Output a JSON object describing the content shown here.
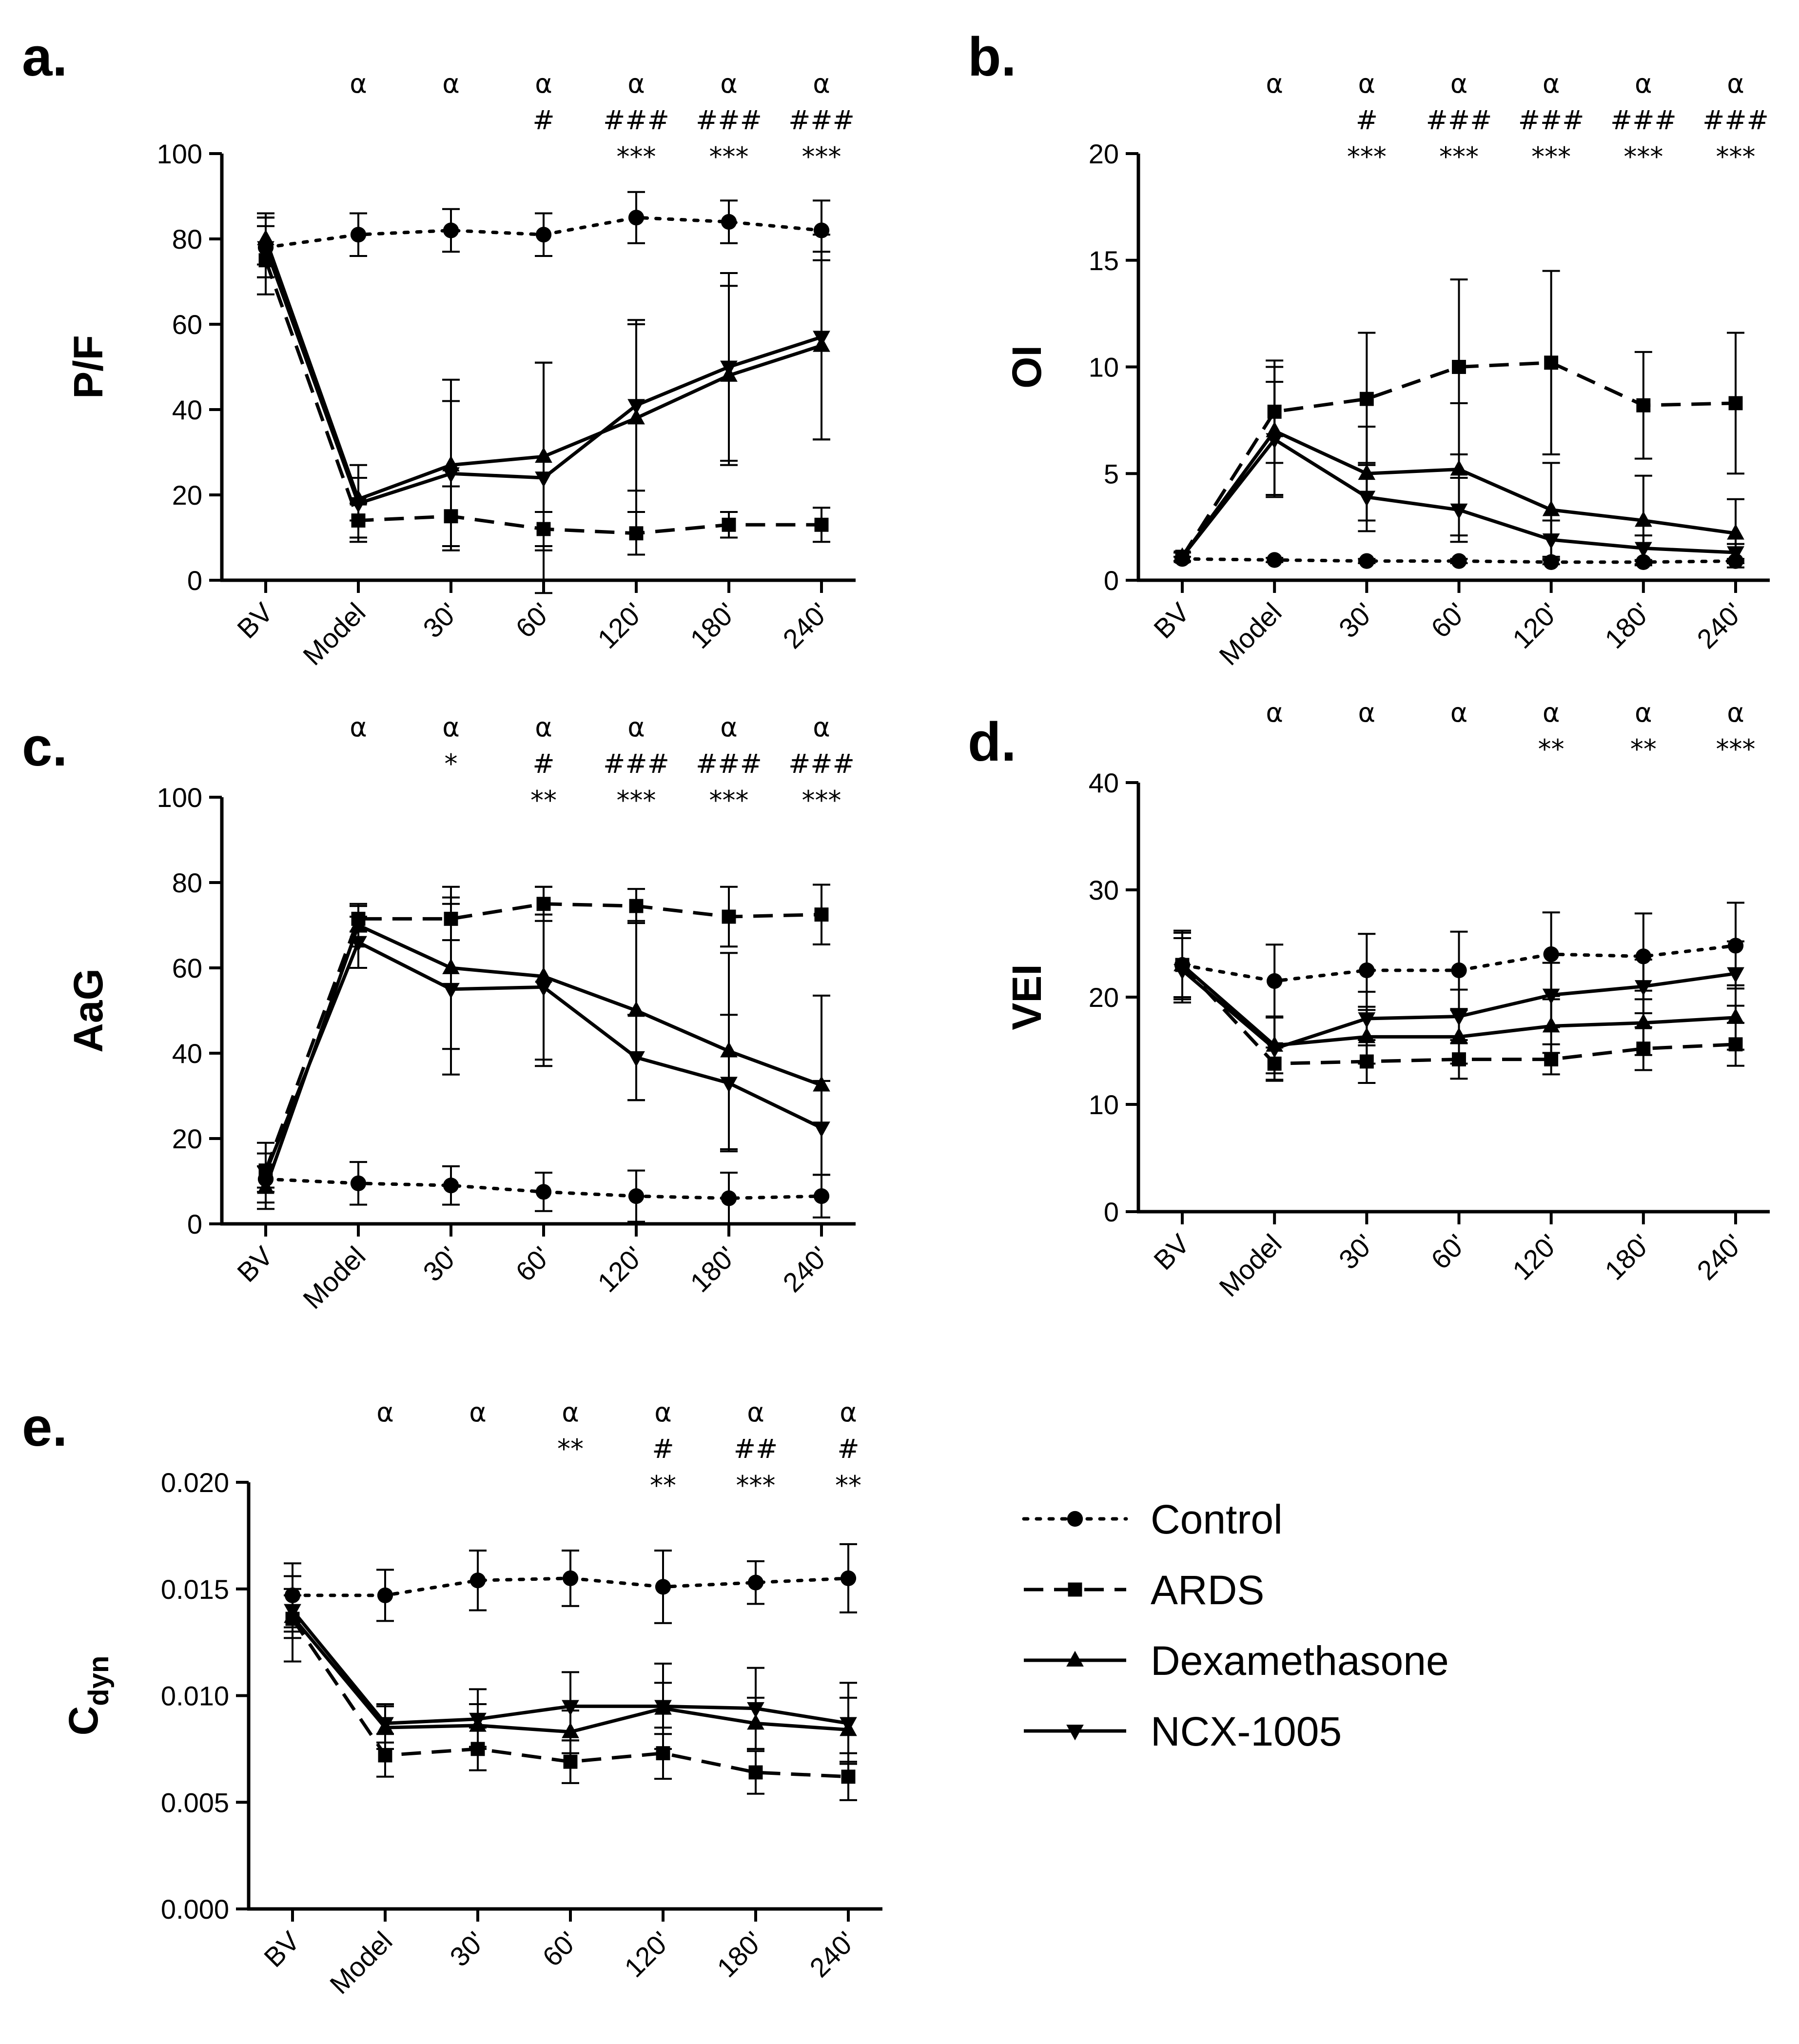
{
  "legend": [
    {
      "key": "control",
      "label": "Control"
    },
    {
      "key": "ards",
      "label": "ARDS"
    },
    {
      "key": "dexa",
      "label": "Dexamethasone"
    },
    {
      "key": "ncx",
      "label": "NCX-1005"
    }
  ],
  "chart_data": [
    {
      "letter": "a.",
      "type": "line",
      "ylabel": "P/F",
      "categories": [
        "BV",
        "Model",
        "30'",
        "60'",
        "120'",
        "180'",
        "240'"
      ],
      "ylim": [
        0,
        100
      ],
      "yticks": [
        "0",
        "20",
        "40",
        "60",
        "80",
        "100"
      ],
      "significance": [
        [],
        [
          "α"
        ],
        [
          "α"
        ],
        [
          "α",
          "#"
        ],
        [
          "α",
          "###",
          "***"
        ],
        [
          "α",
          "###",
          "***"
        ],
        [
          "α",
          "###",
          "***"
        ]
      ],
      "series": [
        {
          "key": "control",
          "values": [
            78,
            81,
            82,
            81,
            85,
            84,
            82
          ],
          "errors": [
            7,
            5,
            5,
            5,
            6,
            5,
            7
          ]
        },
        {
          "key": "ards",
          "values": [
            75,
            14,
            15,
            12,
            11,
            13,
            13
          ],
          "errors": [
            8,
            4,
            7,
            4,
            5,
            3,
            4
          ]
        },
        {
          "key": "dexa",
          "values": [
            80,
            19,
            27,
            29,
            38,
            48,
            55
          ],
          "errors": [
            6,
            5,
            20,
            22,
            22,
            21,
            22
          ]
        },
        {
          "key": "ncx",
          "values": [
            78,
            18,
            25,
            24,
            41,
            50,
            57
          ],
          "errors": [
            7,
            9,
            17,
            27,
            20,
            22,
            24
          ]
        }
      ]
    },
    {
      "letter": "b.",
      "type": "line",
      "ylabel": "OI",
      "categories": [
        "BV",
        "Model",
        "30'",
        "60'",
        "120'",
        "180'",
        "240'"
      ],
      "ylim": [
        0,
        20
      ],
      "yticks": [
        "0",
        "5",
        "10",
        "15",
        "20"
      ],
      "significance": [
        [],
        [
          "α"
        ],
        [
          "α",
          "#",
          "***"
        ],
        [
          "α",
          "###",
          "***"
        ],
        [
          "α",
          "###",
          "***"
        ],
        [
          "α",
          "###",
          "***"
        ],
        [
          "α",
          "###",
          "***"
        ]
      ],
      "series": [
        {
          "key": "control",
          "values": [
            1.0,
            0.95,
            0.9,
            0.9,
            0.85,
            0.85,
            0.9
          ],
          "errors": [
            0.1,
            0.1,
            0.1,
            0.1,
            0.1,
            0.1,
            0.1
          ]
        },
        {
          "key": "ards",
          "values": [
            1.1,
            7.9,
            8.5,
            10.0,
            10.2,
            8.2,
            8.3
          ],
          "errors": [
            0.2,
            2.4,
            3.1,
            4.1,
            4.3,
            2.5,
            3.3
          ]
        },
        {
          "key": "dexa",
          "values": [
            1.1,
            7.0,
            5.0,
            5.2,
            3.3,
            2.8,
            2.2
          ],
          "errors": [
            0.2,
            3.0,
            2.2,
            3.1,
            2.2,
            2.1,
            1.6
          ]
        },
        {
          "key": "ncx",
          "values": [
            1.1,
            6.6,
            3.9,
            3.3,
            1.9,
            1.5,
            1.3
          ],
          "errors": [
            0.2,
            2.7,
            1.6,
            1.5,
            0.9,
            0.6,
            0.4
          ]
        }
      ]
    },
    {
      "letter": "c.",
      "type": "line",
      "ylabel": "AaG",
      "categories": [
        "BV",
        "Model",
        "30'",
        "60'",
        "120'",
        "180'",
        "240'"
      ],
      "ylim": [
        0,
        100
      ],
      "yticks": [
        "0",
        "20",
        "40",
        "60",
        "80",
        "100"
      ],
      "significance": [
        [],
        [
          "α"
        ],
        [
          "α",
          "*"
        ],
        [
          "α",
          "#",
          "**"
        ],
        [
          "α",
          "###",
          "***"
        ],
        [
          "α",
          "###",
          "***"
        ],
        [
          "α",
          "###",
          "***"
        ]
      ],
      "series": [
        {
          "key": "control",
          "values": [
            10.5,
            9.5,
            9,
            7.5,
            6.5,
            6,
            6.5
          ],
          "errors": [
            3,
            5,
            4.5,
            4.5,
            6,
            6,
            5
          ]
        },
        {
          "key": "ards",
          "values": [
            12.5,
            71.5,
            71.5,
            75,
            74.5,
            72,
            72.5
          ],
          "errors": [
            4,
            3,
            5,
            4,
            4,
            7,
            7
          ]
        },
        {
          "key": "dexa",
          "values": [
            8.5,
            70,
            60,
            58,
            50,
            40.5,
            32.5
          ],
          "errors": [
            5,
            5,
            19,
            21,
            21,
            23,
            21
          ]
        },
        {
          "key": "ncx",
          "values": [
            12,
            66,
            55,
            55.5,
            39,
            33,
            22.5
          ],
          "errors": [
            7,
            6,
            20,
            17,
            10,
            16,
            11
          ]
        }
      ]
    },
    {
      "letter": "d.",
      "type": "line",
      "ylabel": "VEI",
      "categories": [
        "BV",
        "Model",
        "30'",
        "60'",
        "120'",
        "180'",
        "240'"
      ],
      "ylim": [
        0,
        40
      ],
      "yticks": [
        "0",
        "10",
        "20",
        "30",
        "40"
      ],
      "significance": [
        [],
        [
          "α"
        ],
        [
          "α"
        ],
        [
          "α"
        ],
        [
          "α",
          "**"
        ],
        [
          "α",
          "**"
        ],
        [
          "α",
          "***"
        ]
      ],
      "series": [
        {
          "key": "control",
          "values": [
            23,
            21.5,
            22.5,
            22.5,
            24,
            23.8,
            24.8
          ],
          "errors": [
            3.2,
            3.4,
            3.4,
            3.6,
            3.9,
            4.0,
            4.0
          ]
        },
        {
          "key": "ards",
          "values": [
            23,
            13.8,
            14,
            14.2,
            14.2,
            15.2,
            15.6
          ],
          "errors": [
            3.0,
            1.5,
            2,
            1.8,
            1.4,
            2,
            2
          ]
        },
        {
          "key": "dexa",
          "values": [
            23,
            15.5,
            16.3,
            16.3,
            17.3,
            17.6,
            18.1
          ],
          "errors": [
            3,
            2.6,
            2.5,
            2.5,
            2.5,
            3,
            3
          ]
        },
        {
          "key": "ncx",
          "values": [
            22.5,
            15.2,
            18,
            18.2,
            20.2,
            21,
            22.2
          ],
          "errors": [
            3,
            3,
            2.5,
            2.5,
            3.0,
            2.5,
            3.0
          ]
        }
      ]
    },
    {
      "letter": "e.",
      "type": "line",
      "ylabel": "C",
      "ylabel_sub": "dyn",
      "categories": [
        "BV",
        "Model",
        "30'",
        "60'",
        "120'",
        "180'",
        "240'"
      ],
      "ylim": [
        0,
        0.02
      ],
      "yticks": [
        "0.000",
        "0.005",
        "0.010",
        "0.015",
        "0.020"
      ],
      "significance": [
        [],
        [
          "α"
        ],
        [
          "α"
        ],
        [
          "α",
          "**"
        ],
        [
          "α",
          "#",
          "**"
        ],
        [
          "α",
          "##",
          "***"
        ],
        [
          "α",
          "#",
          "**"
        ]
      ],
      "series": [
        {
          "key": "control",
          "values": [
            0.0147,
            0.0147,
            0.0154,
            0.0155,
            0.0151,
            0.0153,
            0.0155
          ],
          "errors": [
            0.0015,
            0.0012,
            0.0014,
            0.0013,
            0.0017,
            0.001,
            0.0016
          ]
        },
        {
          "key": "ards",
          "values": [
            0.0136,
            0.0072,
            0.0075,
            0.0069,
            0.0073,
            0.0064,
            0.0062
          ],
          "errors": [
            0.002,
            0.001,
            0.001,
            0.001,
            0.0012,
            0.001,
            0.0011
          ]
        },
        {
          "key": "dexa",
          "values": [
            0.0137,
            0.0085,
            0.0086,
            0.0083,
            0.0094,
            0.0087,
            0.0084
          ],
          "errors": [
            0.001,
            0.001,
            0.001,
            0.001,
            0.0012,
            0.0012,
            0.0015
          ]
        },
        {
          "key": "ncx",
          "values": [
            0.014,
            0.0087,
            0.0089,
            0.0095,
            0.0095,
            0.0094,
            0.0087
          ],
          "errors": [
            0.001,
            0.0009,
            0.0014,
            0.0016,
            0.002,
            0.0019,
            0.0019
          ]
        }
      ]
    }
  ]
}
